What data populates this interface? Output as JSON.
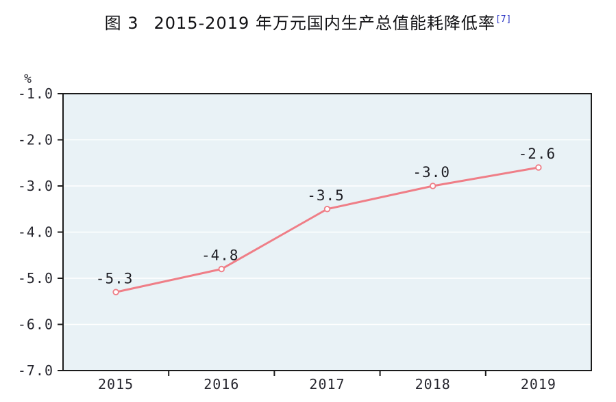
{
  "title": {
    "prefix": "图 3",
    "text": "2015-2019 年万元国内生产总值能耗降低率",
    "footnote_ref": "[7]",
    "footnote_color": "#2a35c4",
    "text_color": "#111114"
  },
  "chart_data": {
    "type": "line",
    "categories": [
      "2015",
      "2016",
      "2017",
      "2018",
      "2019"
    ],
    "values": [
      -5.3,
      -4.8,
      -3.5,
      -3.0,
      -2.6
    ],
    "data_labels": [
      "-5.3",
      "-4.8",
      "-3.5",
      "-3.0",
      "-2.6"
    ],
    "unit_label": "%",
    "y_ticks": [
      "-1.0",
      "-2.0",
      "-3.0",
      "-4.0",
      "-5.0",
      "-6.0",
      "-7.0"
    ],
    "ylim": [
      -7.0,
      -1.0
    ],
    "grid": true,
    "legend": "none",
    "line_color": "#ef7e87",
    "marker": "open-circle",
    "marker_fill": "#ffffff",
    "plot_bg": "#e9f2f6",
    "grid_color": "#ffffff",
    "axis_color": "#1b1b1b",
    "data_label_color": "#1e1e24",
    "tick_label_color": "#26262e"
  }
}
